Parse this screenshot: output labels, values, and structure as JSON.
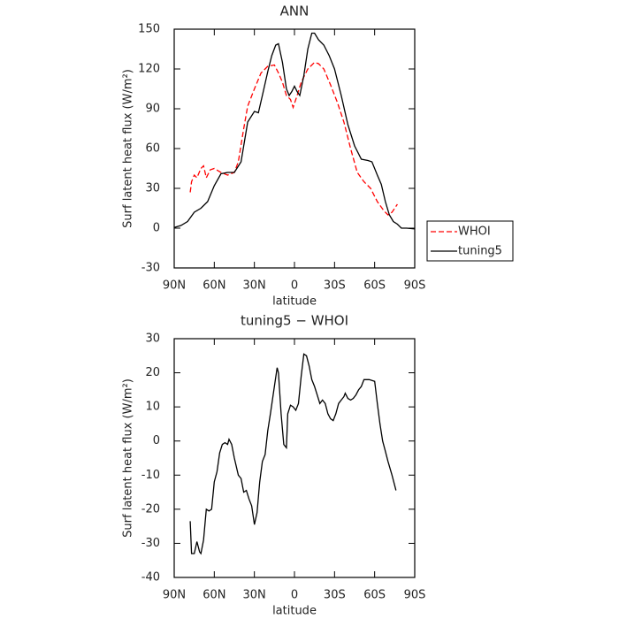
{
  "chart_data": [
    {
      "type": "line",
      "title": "ANN",
      "x_label": "latitude",
      "y_label": "Surf latent heat flux (W/m²)",
      "xlim": [
        90,
        -90
      ],
      "xticks": [
        {
          "value": 90,
          "label": "90N"
        },
        {
          "value": 60,
          "label": "60N"
        },
        {
          "value": 30,
          "label": "30N"
        },
        0,
        {
          "value": -30,
          "label": "30S"
        },
        {
          "value": -60,
          "label": "60S"
        },
        {
          "value": -90,
          "label": "90S"
        }
      ],
      "ylim": [
        -30,
        150
      ],
      "yticks": [
        -30,
        0,
        30,
        60,
        90,
        120,
        150
      ],
      "legend": "right",
      "series": [
        {
          "name": "WHOI",
          "color": "#ff0000",
          "linestyle": "dashed",
          "x": [
            78,
            77,
            75,
            73,
            70,
            68,
            66,
            63,
            60,
            55,
            50,
            45,
            42,
            38,
            35,
            30,
            25,
            20,
            15,
            12,
            9,
            6,
            3,
            1,
            -2,
            -5,
            -10,
            -15,
            -18,
            -22,
            -27,
            -32,
            -37,
            -42,
            -47,
            -52,
            -57,
            -62,
            -67,
            -70,
            -73,
            -77
          ],
          "values": [
            27,
            35,
            40,
            38,
            45,
            47,
            38,
            44,
            45,
            42,
            40,
            42,
            50,
            75,
            92,
            105,
            117,
            122,
            123,
            117,
            110,
            100,
            97,
            91,
            100,
            110,
            120,
            125,
            124,
            120,
            108,
            95,
            80,
            60,
            42,
            35,
            30,
            20,
            13,
            10,
            12,
            18
          ]
        },
        {
          "name": "tuning5",
          "color": "#000000",
          "linestyle": "solid",
          "x": [
            90,
            85,
            80,
            75,
            70,
            65,
            60,
            55,
            50,
            45,
            40,
            35,
            30,
            27,
            24,
            20,
            17,
            14,
            12,
            9,
            6,
            4,
            2,
            0,
            -2,
            -4,
            -7,
            -10,
            -13,
            -15,
            -18,
            -22,
            -26,
            -30,
            -35,
            -40,
            -45,
            -50,
            -55,
            -58,
            -62,
            -65,
            -68,
            -71,
            -74,
            -77,
            -80,
            -84,
            -90
          ],
          "values": [
            0.5,
            2,
            5,
            12,
            15,
            20,
            32,
            41,
            42,
            42,
            50,
            80,
            88,
            87,
            100,
            118,
            130,
            138,
            139,
            125,
            105,
            100,
            103,
            107,
            103,
            100,
            115,
            135,
            147,
            147,
            142,
            138,
            130,
            120,
            100,
            78,
            62,
            52,
            51,
            50,
            40,
            33,
            20,
            10,
            5,
            3,
            0,
            0,
            -0.5
          ]
        }
      ]
    },
    {
      "type": "line",
      "title": "tuning5 − WHOI",
      "x_label": "latitude",
      "y_label": "Surf latent heat flux (W/m²)",
      "xlim": [
        90,
        -90
      ],
      "xticks": [
        {
          "value": 90,
          "label": "90N"
        },
        {
          "value": 60,
          "label": "60N"
        },
        {
          "value": 30,
          "label": "30N"
        },
        0,
        {
          "value": -30,
          "label": "30S"
        },
        {
          "value": -60,
          "label": "60S"
        },
        {
          "value": -90,
          "label": "90S"
        }
      ],
      "ylim": [
        -40,
        30
      ],
      "yticks": [
        -40,
        -30,
        -20,
        -10,
        0,
        10,
        20,
        30
      ],
      "series": [
        {
          "color": "#000000",
          "linestyle": "solid",
          "x": [
            78,
            77,
            75,
            73,
            71,
            70,
            68,
            66,
            64,
            62,
            60,
            58,
            56,
            54,
            52,
            50,
            49,
            47,
            45,
            42,
            40,
            38,
            36,
            34,
            32,
            30,
            28,
            26,
            24,
            22,
            20,
            18,
            15,
            13,
            12,
            10,
            8,
            6,
            5,
            3,
            1,
            -1,
            -3,
            -5,
            -7,
            -9,
            -11,
            -13,
            -15,
            -17,
            -19,
            -21,
            -23,
            -25,
            -27,
            -29,
            -31,
            -33,
            -35,
            -37,
            -38,
            -40,
            -42,
            -44,
            -46,
            -48,
            -50,
            -52,
            -56,
            -60,
            -62,
            -64,
            -66,
            -68,
            -70,
            -73,
            -76
          ],
          "values": [
            -23.5,
            -33,
            -33,
            -29.5,
            -32.5,
            -33,
            -29,
            -20,
            -20.5,
            -20,
            -12,
            -9,
            -3.5,
            -1,
            -0.5,
            -1,
            0.5,
            -1,
            -5,
            -10,
            -11,
            -15,
            -14.5,
            -17,
            -19,
            -24.5,
            -21,
            -12,
            -6,
            -4,
            3,
            8,
            16,
            21.5,
            20,
            8,
            -1,
            -2,
            8,
            10.5,
            10,
            9,
            11,
            19,
            25.5,
            25,
            22,
            18,
            16,
            13.5,
            11,
            12,
            11,
            8,
            6.5,
            6,
            8,
            11,
            12,
            13,
            14,
            12.5,
            12,
            12.5,
            13.5,
            15,
            16,
            18,
            18,
            17.5,
            11,
            5,
            0,
            -3,
            -6,
            -10,
            -14.5
          ]
        }
      ]
    }
  ]
}
